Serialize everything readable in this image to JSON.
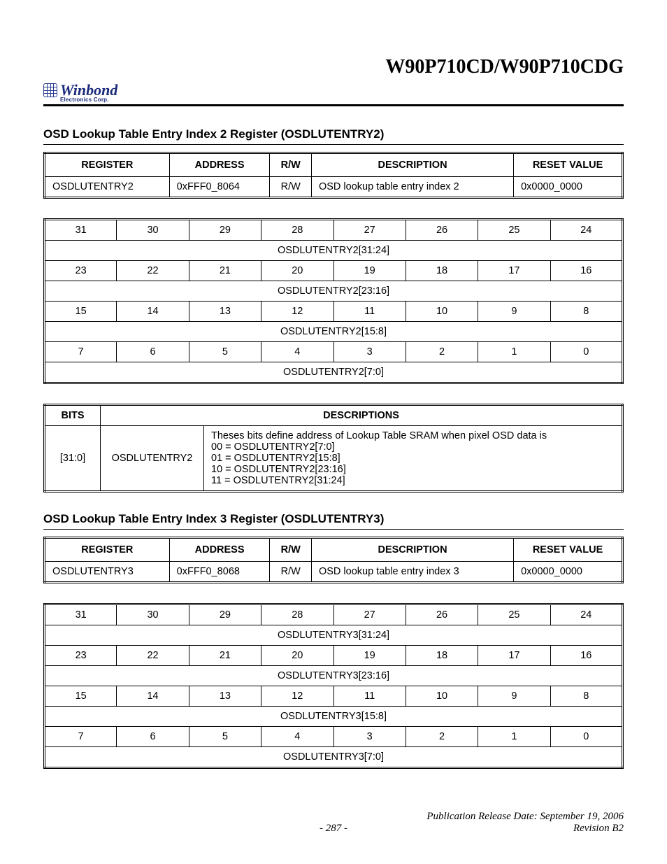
{
  "doc_title": "W90P710CD/W90P710CDG",
  "logo": {
    "name": "Winbond",
    "sub": "Electronics Corp."
  },
  "section2": {
    "title": "OSD Lookup Table Entry Index 2 Register (OSDLUTENTRY2)",
    "reg_headers": [
      "REGISTER",
      "ADDRESS",
      "R/W",
      "DESCRIPTION",
      "RESET VALUE"
    ],
    "reg_row": [
      "OSDLUTENTRY2",
      "0xFFF0_8064",
      "R/W",
      "OSD lookup table entry index 2",
      "0x0000_0000"
    ],
    "bits_rows": [
      [
        "31",
        "30",
        "29",
        "28",
        "27",
        "26",
        "25",
        "24"
      ],
      "OSDLUTENTRY2[31:24]",
      [
        "23",
        "22",
        "21",
        "20",
        "19",
        "18",
        "17",
        "16"
      ],
      "OSDLUTENTRY2[23:16]",
      [
        "15",
        "14",
        "13",
        "12",
        "11",
        "10",
        "9",
        "8"
      ],
      "OSDLUTENTRY2[15:8]",
      [
        "7",
        "6",
        "5",
        "4",
        "3",
        "2",
        "1",
        "0"
      ],
      "OSDLUTENTRY2[7:0]"
    ],
    "desc_headers": [
      "BITS",
      "DESCRIPTIONS"
    ],
    "desc_row": {
      "bits": "[31:0]",
      "name": "OSDLUTENTRY2",
      "lines": [
        "Theses bits define address of Lookup Table SRAM when pixel OSD data is",
        "00 = OSDLUTENTRY2[7:0]",
        "01 = OSDLUTENTRY2[15:8]",
        "10 = OSDLUTENTRY2[23:16]",
        "11 = OSDLUTENTRY2[31:24]"
      ]
    }
  },
  "section3": {
    "title": "OSD Lookup Table Entry Index 3 Register (OSDLUTENTRY3)",
    "reg_headers": [
      "REGISTER",
      "ADDRESS",
      "R/W",
      "DESCRIPTION",
      "RESET VALUE"
    ],
    "reg_row": [
      "OSDLUTENTRY3",
      "0xFFF0_8068",
      "R/W",
      "OSD lookup table entry index 3",
      "0x0000_0000"
    ],
    "bits_rows": [
      [
        "31",
        "30",
        "29",
        "28",
        "27",
        "26",
        "25",
        "24"
      ],
      "OSDLUTENTRY3[31:24]",
      [
        "23",
        "22",
        "21",
        "20",
        "19",
        "18",
        "17",
        "16"
      ],
      "OSDLUTENTRY3[23:16]",
      [
        "15",
        "14",
        "13",
        "12",
        "11",
        "10",
        "9",
        "8"
      ],
      "OSDLUTENTRY3[15:8]",
      [
        "7",
        "6",
        "5",
        "4",
        "3",
        "2",
        "1",
        "0"
      ],
      "OSDLUTENTRY3[7:0]"
    ]
  },
  "footer": {
    "pub": "Publication Release Date: September 19, 2006",
    "page": "- 287 -",
    "rev": "Revision B2"
  }
}
